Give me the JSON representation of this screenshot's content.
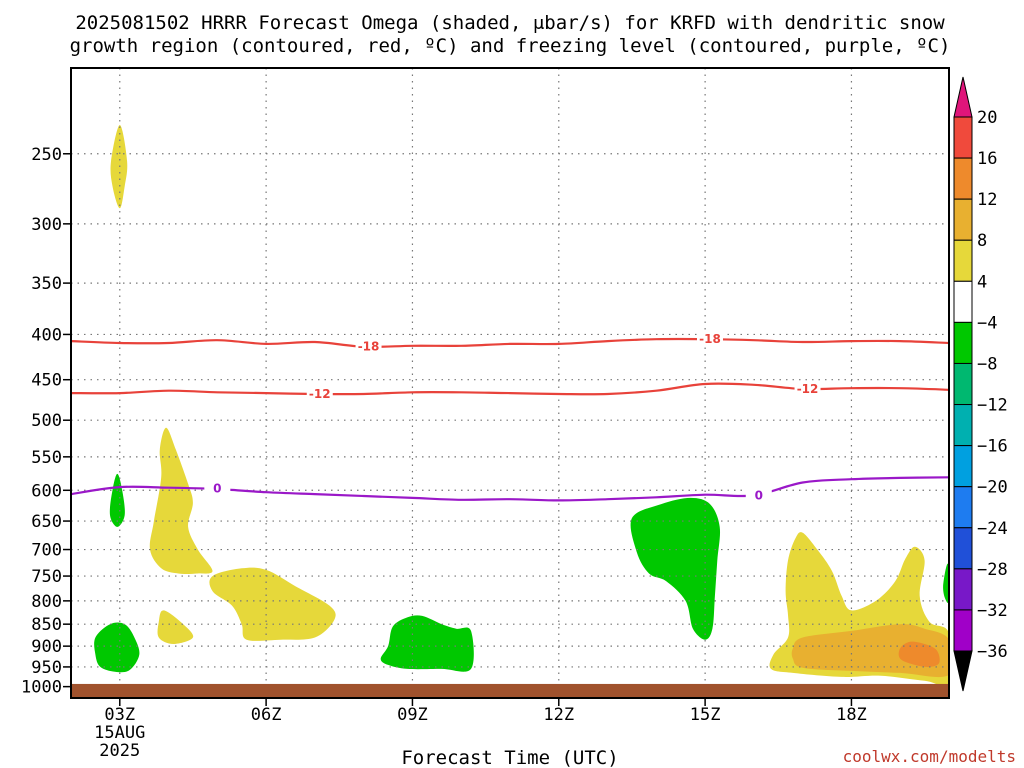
{
  "title": {
    "line1": "2025081502 HRRR Forecast Omega (shaded, μbar/s) for KRFD with dendritic snow",
    "line2": "growth region (contoured, red, ºC) and freezing level (contoured, purple, ºC)"
  },
  "credit": "coolwx.com/modelts",
  "chart_data": {
    "type": "heatmap",
    "xlabel": "Forecast Time (UTC)",
    "ylabel": "",
    "x_range": [
      2,
      20
    ],
    "y_range_hPa": [
      200,
      1030
    ],
    "y_scale": "log-pressure (inverted)",
    "grid": true,
    "x_ticks": [
      {
        "x": 3,
        "label": "03Z",
        "sub1": "15AUG",
        "sub2": "2025"
      },
      {
        "x": 6,
        "label": "06Z"
      },
      {
        "x": 9,
        "label": "09Z"
      },
      {
        "x": 12,
        "label": "12Z"
      },
      {
        "x": 15,
        "label": "15Z"
      },
      {
        "x": 18,
        "label": "18Z"
      }
    ],
    "y_ticks": [
      250,
      300,
      350,
      400,
      450,
      500,
      550,
      600,
      650,
      700,
      750,
      800,
      850,
      900,
      950,
      1000
    ],
    "colorbar": {
      "labels": [
        "20",
        "16",
        "12",
        "8",
        "4",
        "−4",
        "−8",
        "−12",
        "−16",
        "−20",
        "−24",
        "−28",
        "−32",
        "−36"
      ],
      "colors": {
        "top_arrow": "#e0157a",
        "b16_20": "#f04a3c",
        "b12_16": "#ee8a2c",
        "b8_12": "#e8b030",
        "b4_8": "#e6d83a",
        "b_neutral": "#ffffff",
        "bm4_m8": "#00c800",
        "bm8_m12": "#00b870",
        "bm12_m16": "#00b0b0",
        "bm16_m20": "#00a0e0",
        "bm20_m24": "#1e7cf0",
        "bm24_m28": "#2050d8",
        "bm28_m32": "#7818c8",
        "bm32_m36": "#a000c8",
        "b_below_m36": "#a8a8a8",
        "bottom_arrow": "#000000"
      }
    },
    "contours": [
      {
        "name": "-18",
        "color": "#e8423a",
        "points": [
          [
            2,
            407
          ],
          [
            3,
            409
          ],
          [
            4,
            409
          ],
          [
            5,
            406
          ],
          [
            6,
            410
          ],
          [
            7,
            408
          ],
          [
            8,
            413
          ],
          [
            9,
            412
          ],
          [
            10,
            412
          ],
          [
            11,
            410
          ],
          [
            12,
            410
          ],
          [
            13,
            407
          ],
          [
            14,
            405
          ],
          [
            15,
            405
          ],
          [
            16,
            406
          ],
          [
            17,
            408
          ],
          [
            18,
            407
          ],
          [
            19,
            407
          ],
          [
            20,
            409
          ]
        ],
        "label_positions": [
          [
            8.1,
            413
          ],
          [
            15.1,
            405
          ]
        ]
      },
      {
        "name": "-12",
        "color": "#e8423a",
        "points": [
          [
            2,
            466
          ],
          [
            3,
            466
          ],
          [
            4,
            463
          ],
          [
            5,
            465
          ],
          [
            6,
            466
          ],
          [
            7,
            467
          ],
          [
            8,
            467
          ],
          [
            9,
            465
          ],
          [
            10,
            465
          ],
          [
            11,
            466
          ],
          [
            12,
            467
          ],
          [
            13,
            467
          ],
          [
            14,
            463
          ],
          [
            15,
            455
          ],
          [
            16,
            456
          ],
          [
            17,
            461
          ],
          [
            18,
            460
          ],
          [
            19,
            460
          ],
          [
            20,
            462
          ]
        ],
        "label_positions": [
          [
            7.1,
            467
          ],
          [
            17.1,
            461
          ]
        ]
      },
      {
        "name": "0",
        "color": "#9a18c8",
        "points": [
          [
            2,
            606
          ],
          [
            3,
            595
          ],
          [
            4,
            596
          ],
          [
            5,
            598
          ],
          [
            6,
            603
          ],
          [
            7,
            606
          ],
          [
            8,
            609
          ],
          [
            9,
            612
          ],
          [
            10,
            615
          ],
          [
            11,
            614
          ],
          [
            12,
            616
          ],
          [
            13,
            614
          ],
          [
            14,
            611
          ],
          [
            15,
            607
          ],
          [
            16,
            608
          ],
          [
            17,
            588
          ],
          [
            18,
            583
          ],
          [
            19,
            581
          ],
          [
            20,
            580
          ]
        ],
        "label_positions": [
          [
            5.0,
            597
          ],
          [
            16.1,
            608
          ]
        ]
      }
    ],
    "omega_regions": [
      {
        "name": "upper-pos",
        "range": "4 to 8",
        "color": "#e6d83a",
        "points": [
          [
            3,
            232
          ],
          [
            3.15,
            255
          ],
          [
            3.1,
            272
          ],
          [
            3,
            288
          ],
          [
            2.85,
            272
          ],
          [
            2.82,
            255
          ]
        ]
      },
      {
        "name": "mid-pos-column",
        "range": "4 to 8",
        "color": "#e6d83a",
        "points": [
          [
            3.95,
            510
          ],
          [
            4.15,
            540
          ],
          [
            4.4,
            590
          ],
          [
            4.5,
            620
          ],
          [
            4.4,
            660
          ],
          [
            4.6,
            700
          ],
          [
            4.9,
            740
          ],
          [
            4.6,
            745
          ],
          [
            4.2,
            745
          ],
          [
            3.85,
            735
          ],
          [
            3.62,
            700
          ],
          [
            3.7,
            650
          ],
          [
            3.85,
            580
          ],
          [
            3.82,
            540
          ]
        ]
      },
      {
        "name": "mid-pos-lobe",
        "range": "4 to 8",
        "color": "#e6d83a",
        "points": [
          [
            4.9,
            750
          ],
          [
            5.5,
            735
          ],
          [
            6,
            738
          ],
          [
            6.6,
            770
          ],
          [
            7.3,
            810
          ],
          [
            7.4,
            840
          ],
          [
            7.0,
            880
          ],
          [
            6.3,
            885
          ],
          [
            5.6,
            885
          ],
          [
            5.5,
            850
          ],
          [
            5.3,
            810
          ],
          [
            4.9,
            780
          ]
        ]
      },
      {
        "name": "small-pos",
        "range": "4 to 8",
        "color": "#e6d83a",
        "points": [
          [
            3.9,
            820
          ],
          [
            4.3,
            850
          ],
          [
            4.5,
            880
          ],
          [
            4.1,
            895
          ],
          [
            3.8,
            880
          ],
          [
            3.8,
            845
          ]
        ]
      },
      {
        "name": "right-pos",
        "range": "4 to 8",
        "color": "#e6d83a",
        "points": [
          [
            17,
            670
          ],
          [
            17.3,
            700
          ],
          [
            17.6,
            740
          ],
          [
            17.8,
            790
          ],
          [
            18,
            820
          ],
          [
            18.5,
            800
          ],
          [
            18.9,
            760
          ],
          [
            19.1,
            718
          ],
          [
            19.3,
            695
          ],
          [
            19.5,
            720
          ],
          [
            19.4,
            790
          ],
          [
            19.6,
            845
          ],
          [
            20,
            870
          ],
          [
            20,
            990
          ],
          [
            19.5,
            985
          ],
          [
            18.6,
            972
          ],
          [
            17.8,
            975
          ],
          [
            16.8,
            965
          ],
          [
            16.35,
            955
          ],
          [
            16.4,
            920
          ],
          [
            16.7,
            880
          ],
          [
            16.7,
            830
          ],
          [
            16.65,
            780
          ],
          [
            16.7,
            720
          ],
          [
            16.85,
            680
          ]
        ]
      },
      {
        "name": "right-pos-inner",
        "range": "8 to 12",
        "color": "#e8b030",
        "points": [
          [
            17,
            880
          ],
          [
            18,
            865
          ],
          [
            19,
            850
          ],
          [
            19.5,
            860
          ],
          [
            20,
            885
          ],
          [
            20,
            970
          ],
          [
            19,
            965
          ],
          [
            18,
            960
          ],
          [
            17,
            952
          ],
          [
            16.8,
            930
          ],
          [
            16.8,
            905
          ]
        ]
      },
      {
        "name": "right-pos-core",
        "range": "12 to 16",
        "color": "#ee8a2c",
        "points": [
          [
            19.2,
            890
          ],
          [
            19.5,
            895
          ],
          [
            19.75,
            910
          ],
          [
            19.8,
            940
          ],
          [
            19.6,
            950
          ],
          [
            19.3,
            945
          ],
          [
            19.0,
            930
          ],
          [
            19.0,
            905
          ]
        ]
      },
      {
        "name": "upper-neg",
        "range": "-4 to -8",
        "color": "#00c800",
        "points": [
          [
            2.95,
            575
          ],
          [
            3.05,
            600
          ],
          [
            3.1,
            640
          ],
          [
            2.95,
            660
          ],
          [
            2.8,
            640
          ],
          [
            2.85,
            600
          ]
        ]
      },
      {
        "name": "low-neg-left",
        "range": "-4 to -8",
        "color": "#00c800",
        "points": [
          [
            2.5,
            880
          ],
          [
            2.8,
            850
          ],
          [
            3.1,
            850
          ],
          [
            3.3,
            880
          ],
          [
            3.4,
            920
          ],
          [
            3.2,
            958
          ],
          [
            2.9,
            962
          ],
          [
            2.6,
            950
          ],
          [
            2.5,
            920
          ]
        ]
      },
      {
        "name": "low-neg-mid",
        "range": "-4 to -8",
        "color": "#00c800",
        "points": [
          [
            8.6,
            855
          ],
          [
            8.9,
            835
          ],
          [
            9.2,
            832
          ],
          [
            9.6,
            850
          ],
          [
            9.9,
            860
          ],
          [
            10.2,
            865
          ],
          [
            10.2,
            955
          ],
          [
            9.6,
            955
          ],
          [
            8.9,
            955
          ],
          [
            8.5,
            945
          ],
          [
            8.35,
            930
          ],
          [
            8.5,
            900
          ]
        ]
      },
      {
        "name": "mid-neg",
        "range": "-4 to -8",
        "color": "#00c800",
        "points": [
          [
            13.5,
            645
          ],
          [
            14.1,
            622
          ],
          [
            14.7,
            612
          ],
          [
            15.1,
            622
          ],
          [
            15.3,
            660
          ],
          [
            15.25,
            720
          ],
          [
            15.2,
            790
          ],
          [
            15.15,
            860
          ],
          [
            15.0,
            885
          ],
          [
            14.75,
            860
          ],
          [
            14.6,
            800
          ],
          [
            14.2,
            760
          ],
          [
            13.85,
            745
          ],
          [
            13.6,
            705
          ]
        ]
      },
      {
        "name": "right-neg",
        "range": "-4 to -8",
        "color": "#00c800",
        "points": [
          [
            19.95,
            730
          ],
          [
            20,
            735
          ],
          [
            20,
            800
          ],
          [
            19.92,
            795
          ],
          [
            19.88,
            770
          ]
        ]
      }
    ],
    "ground": {
      "from_hPa": 993,
      "color": "#a0522d"
    }
  }
}
